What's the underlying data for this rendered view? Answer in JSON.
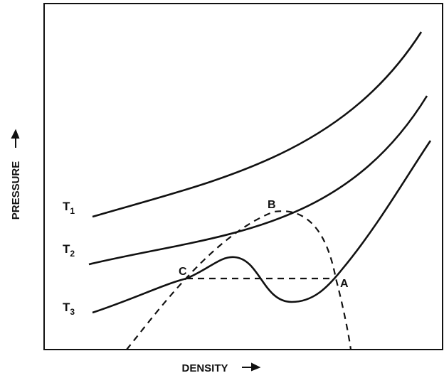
{
  "axes": {
    "x_label": "DENSITY",
    "y_label": "PRESSURE"
  },
  "curves": [
    {
      "label": "T",
      "subscript": "1"
    },
    {
      "label": "T",
      "subscript": "2"
    },
    {
      "label": "T",
      "subscript": "3"
    }
  ],
  "points": [
    "A",
    "B",
    "C"
  ]
}
